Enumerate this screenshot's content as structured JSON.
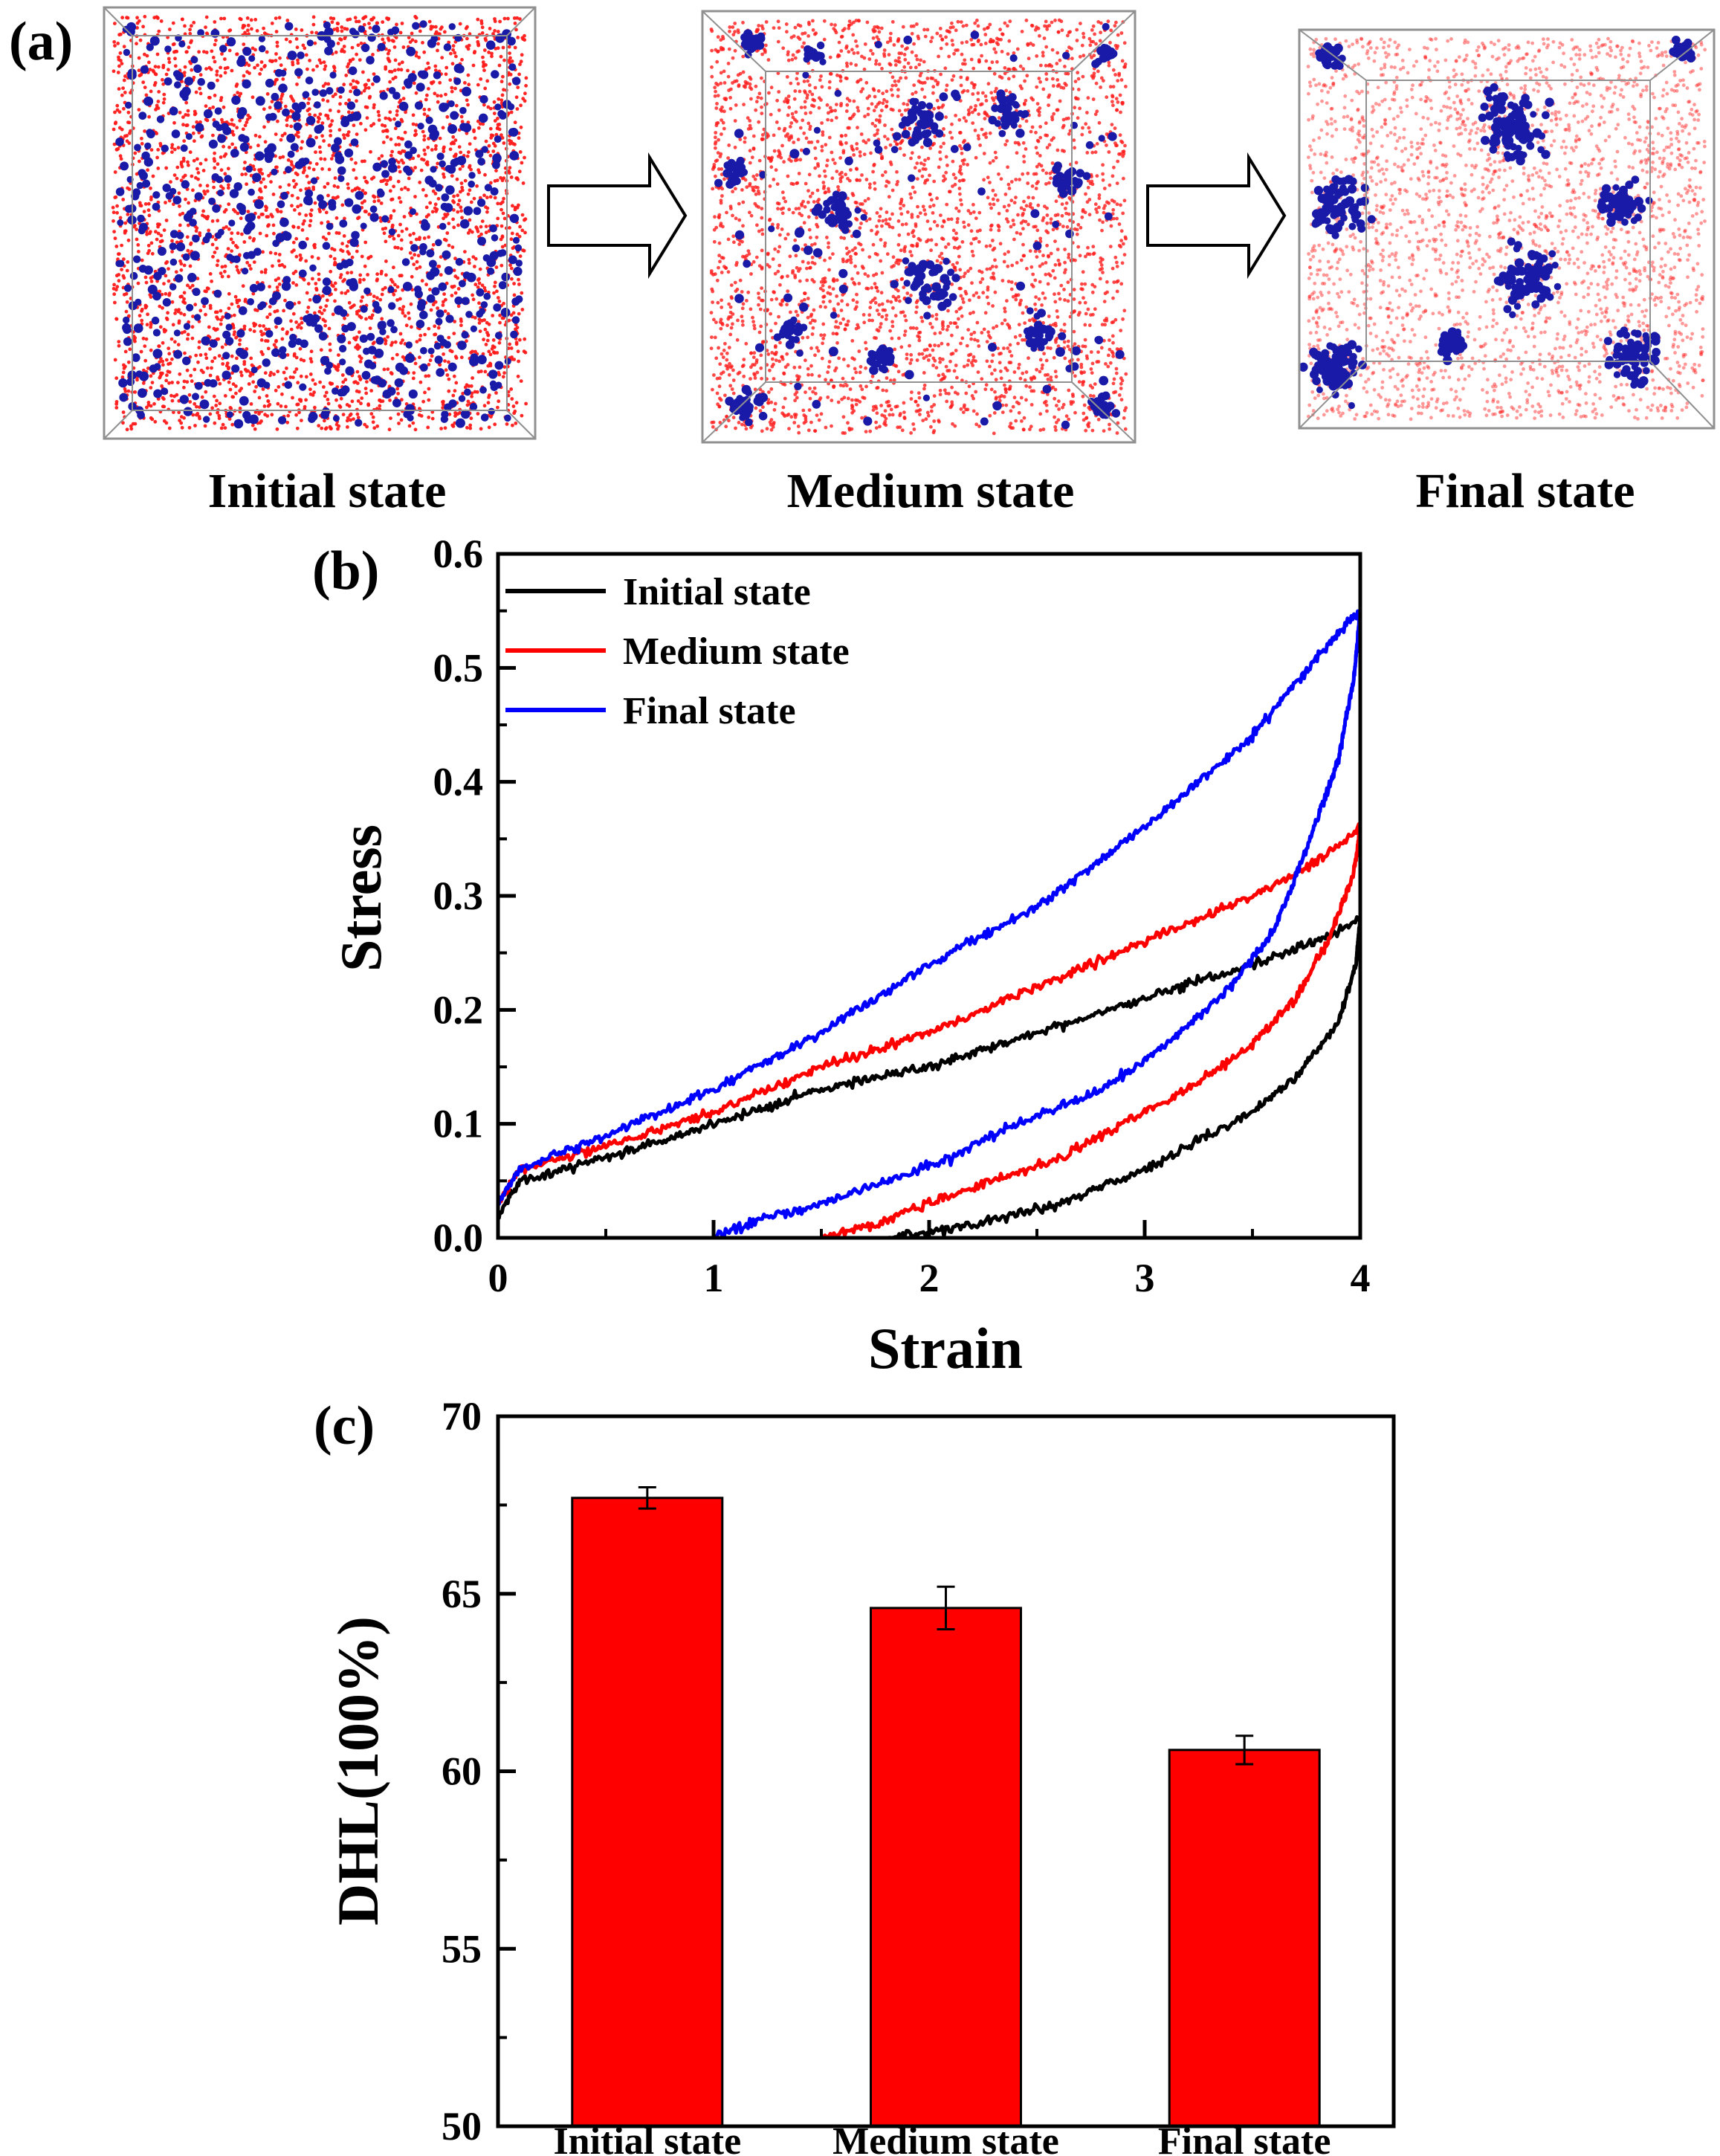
{
  "panel_a": {
    "label": "(a)",
    "states": [
      {
        "caption": "Initial state",
        "scene": "uniform"
      },
      {
        "caption": "Medium state",
        "scene": "partial"
      },
      {
        "caption": "Final state",
        "scene": "clustered"
      }
    ],
    "colors": {
      "matrix": "#ff1a1a",
      "particles": "#1a1aa8",
      "box": "#909090"
    }
  },
  "chart_data": [
    {
      "panel": "(b)",
      "type": "line",
      "xlabel": "Strain",
      "ylabel": "Stress",
      "xlim": [
        0,
        4
      ],
      "ylim": [
        0.0,
        0.6
      ],
      "xticks": [
        "0",
        "1",
        "2",
        "3",
        "4"
      ],
      "yticks": [
        "0.0",
        "0.1",
        "0.2",
        "0.3",
        "0.4",
        "0.5",
        "0.6"
      ],
      "legend_position": "top-left",
      "series": [
        {
          "name": "Initial state",
          "color": "#000000",
          "loading": [
            [
              0,
              0.02
            ],
            [
              0.1,
              0.05
            ],
            [
              0.5,
              0.07
            ],
            [
              1.0,
              0.1
            ],
            [
              1.5,
              0.13
            ],
            [
              2.0,
              0.15
            ],
            [
              2.5,
              0.18
            ],
            [
              3.0,
              0.21
            ],
            [
              3.5,
              0.24
            ],
            [
              3.8,
              0.26
            ],
            [
              4.0,
              0.28
            ]
          ],
          "unloading": [
            [
              4.0,
              0.28
            ],
            [
              3.98,
              0.24
            ],
            [
              3.9,
              0.19
            ],
            [
              3.7,
              0.14
            ],
            [
              3.5,
              0.11
            ],
            [
              3.2,
              0.08
            ],
            [
              3.0,
              0.06
            ],
            [
              2.6,
              0.03
            ],
            [
              2.3,
              0.015
            ],
            [
              2.0,
              0.005
            ],
            [
              1.8,
              0.0
            ]
          ]
        },
        {
          "name": "Medium state",
          "color": "#ff0000",
          "loading": [
            [
              0,
              0.03
            ],
            [
              0.1,
              0.06
            ],
            [
              0.5,
              0.08
            ],
            [
              1.0,
              0.11
            ],
            [
              1.5,
              0.15
            ],
            [
              2.0,
              0.18
            ],
            [
              2.5,
              0.22
            ],
            [
              3.0,
              0.26
            ],
            [
              3.5,
              0.3
            ],
            [
              3.8,
              0.33
            ],
            [
              4.0,
              0.36
            ]
          ],
          "unloading": [
            [
              4.0,
              0.36
            ],
            [
              3.97,
              0.32
            ],
            [
              3.85,
              0.26
            ],
            [
              3.7,
              0.21
            ],
            [
              3.5,
              0.17
            ],
            [
              3.2,
              0.13
            ],
            [
              3.0,
              0.11
            ],
            [
              2.6,
              0.07
            ],
            [
              2.3,
              0.05
            ],
            [
              2.0,
              0.03
            ],
            [
              1.8,
              0.015
            ],
            [
              1.6,
              0.005
            ],
            [
              1.5,
              0.0
            ]
          ]
        },
        {
          "name": "Final state",
          "color": "#0000ff",
          "loading": [
            [
              0,
              0.03
            ],
            [
              0.1,
              0.06
            ],
            [
              0.5,
              0.09
            ],
            [
              1.0,
              0.13
            ],
            [
              1.5,
              0.18
            ],
            [
              2.0,
              0.24
            ],
            [
              2.5,
              0.29
            ],
            [
              3.0,
              0.36
            ],
            [
              3.5,
              0.44
            ],
            [
              3.8,
              0.51
            ],
            [
              4.0,
              0.55
            ]
          ],
          "unloading": [
            [
              4.0,
              0.55
            ],
            [
              3.97,
              0.49
            ],
            [
              3.9,
              0.42
            ],
            [
              3.75,
              0.34
            ],
            [
              3.6,
              0.27
            ],
            [
              3.4,
              0.22
            ],
            [
              3.1,
              0.17
            ],
            [
              2.8,
              0.13
            ],
            [
              2.4,
              0.1
            ],
            [
              2.1,
              0.07
            ],
            [
              1.8,
              0.05
            ],
            [
              1.5,
              0.03
            ],
            [
              1.2,
              0.015
            ],
            [
              1.0,
              0.0
            ]
          ]
        }
      ]
    },
    {
      "panel": "(c)",
      "type": "bar",
      "ylabel": "DHL(100%)",
      "ylim": [
        50,
        70
      ],
      "yticks": [
        "50",
        "55",
        "60",
        "65",
        "70"
      ],
      "categories": [
        "Initial state",
        "Medium state",
        "Final state"
      ],
      "values": [
        67.7,
        64.6,
        60.6
      ],
      "errors": [
        0.3,
        0.6,
        0.4
      ],
      "bar_color": "#ff0000"
    }
  ]
}
